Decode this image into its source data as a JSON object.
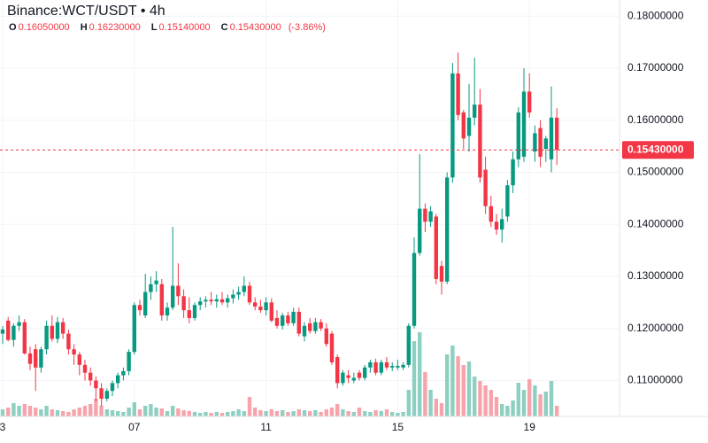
{
  "chart_data": {
    "type": "candlestick",
    "title": "Binance:WCT/USDT • 4h",
    "ohlc_legend": [
      {
        "key": "O",
        "value": {
          "value": 0.1605,
          "label": "0.16050000"
        }
      },
      {
        "key": "H",
        "value": {
          "value": 0.1623,
          "label": "0.16230000"
        }
      },
      {
        "key": "L",
        "value": {
          "value": 0.1514,
          "label": "0.15140000"
        }
      },
      {
        "key": "C",
        "value": {
          "value": 0.1543,
          "label": "0.15430000"
        }
      }
    ],
    "change": {
      "value": -3.86,
      "label": "(-3.86%)"
    },
    "categories": [
      "3",
      null,
      null,
      null,
      null,
      null,
      null,
      null,
      null,
      null,
      null,
      null,
      null,
      null,
      null,
      null,
      null,
      null,
      null,
      null,
      null,
      null,
      null,
      null,
      "07",
      null,
      null,
      null,
      null,
      null,
      null,
      null,
      null,
      null,
      null,
      null,
      null,
      null,
      null,
      null,
      null,
      null,
      null,
      null,
      null,
      null,
      null,
      null,
      "11",
      null,
      null,
      null,
      null,
      null,
      null,
      null,
      null,
      null,
      null,
      null,
      null,
      null,
      null,
      null,
      null,
      null,
      null,
      null,
      null,
      null,
      null,
      null,
      "15",
      null,
      null,
      null,
      null,
      null,
      null,
      null,
      null,
      null,
      null,
      null,
      null,
      null,
      null,
      null,
      null,
      null,
      null,
      null,
      null,
      null,
      null,
      null,
      "19",
      null,
      null,
      null,
      null,
      null
    ],
    "open": [
      0.119,
      0.1215,
      0.1178,
      0.1205,
      0.1212,
      0.1152,
      0.116,
      0.1125,
      0.116,
      0.1205,
      0.118,
      0.1212,
      0.119,
      0.116,
      0.115,
      0.113,
      0.1115,
      0.11,
      0.1085,
      0.1065,
      0.108,
      0.1095,
      0.111,
      0.1118,
      0.1155,
      0.1245,
      0.1225,
      0.127,
      0.1285,
      0.1285,
      0.1225,
      0.124,
      0.1282,
      0.1262,
      0.1235,
      0.122,
      0.1245,
      0.1252,
      0.1255,
      0.1252,
      0.1256,
      0.125,
      0.1258,
      0.1265,
      0.127,
      0.1282,
      0.125,
      0.1242,
      0.1235,
      0.125,
      0.122,
      0.1205,
      0.1225,
      0.121,
      0.1232,
      0.1185,
      0.121,
      0.1195,
      0.1212,
      0.12,
      0.119,
      0.1145,
      0.1095,
      0.111,
      0.11,
      0.1115,
      0.1105,
      0.1125,
      0.1135,
      0.1115,
      0.1135,
      0.1125,
      0.1125,
      0.1125,
      0.113,
      0.1205,
      0.1345,
      0.143,
      0.1405,
      0.1415,
      0.132,
      0.129,
      0.149,
      0.169,
      0.1615,
      0.157,
      0.1605,
      0.163,
      0.1505,
      0.1435,
      0.1405,
      0.139,
      0.1415,
      0.1475,
      0.1525,
      0.153,
      0.1655,
      0.154,
      0.1585,
      0.1545,
      0.1525,
      0.1605
    ],
    "high": [
      0.1205,
      0.1222,
      0.121,
      0.1225,
      0.1218,
      0.1165,
      0.117,
      0.1165,
      0.1215,
      0.1225,
      0.1222,
      0.122,
      0.1198,
      0.117,
      0.1155,
      0.114,
      0.1125,
      0.1108,
      0.1095,
      0.1085,
      0.11,
      0.1115,
      0.1125,
      0.116,
      0.125,
      0.1255,
      0.1305,
      0.13,
      0.131,
      0.1295,
      0.125,
      0.1395,
      0.1325,
      0.1275,
      0.126,
      0.125,
      0.126,
      0.1262,
      0.127,
      0.1265,
      0.127,
      0.1265,
      0.1275,
      0.128,
      0.13,
      0.129,
      0.126,
      0.1255,
      0.126,
      0.1258,
      0.1235,
      0.123,
      0.1232,
      0.124,
      0.124,
      0.1212,
      0.122,
      0.122,
      0.1218,
      0.121,
      0.1195,
      0.115,
      0.112,
      0.112,
      0.1115,
      0.112,
      0.113,
      0.114,
      0.1142,
      0.114,
      0.1145,
      0.1135,
      0.114,
      0.1135,
      0.121,
      0.1375,
      0.1535,
      0.144,
      0.1435,
      0.142,
      0.133,
      0.15,
      0.171,
      0.173,
      0.162,
      0.167,
      0.172,
      0.166,
      0.153,
      0.1455,
      0.142,
      0.143,
      0.1485,
      0.154,
      0.1625,
      0.17,
      0.169,
      0.159,
      0.16,
      0.157,
      0.1665,
      0.1623
    ],
    "low": [
      0.117,
      0.1175,
      0.1165,
      0.1195,
      0.115,
      0.112,
      0.108,
      0.1115,
      0.115,
      0.1175,
      0.1172,
      0.118,
      0.115,
      0.113,
      0.111,
      0.11,
      0.109,
      0.106,
      0.105,
      0.106,
      0.107,
      0.1085,
      0.11,
      0.111,
      0.115,
      0.1225,
      0.122,
      0.1255,
      0.127,
      0.1215,
      0.1215,
      0.1235,
      0.1245,
      0.122,
      0.121,
      0.1215,
      0.1235,
      0.124,
      0.1245,
      0.124,
      0.1245,
      0.124,
      0.1248,
      0.1255,
      0.1262,
      0.1245,
      0.1235,
      0.123,
      0.1225,
      0.1212,
      0.12,
      0.1198,
      0.1205,
      0.1205,
      0.1185,
      0.1175,
      0.119,
      0.119,
      0.1195,
      0.1165,
      0.113,
      0.1085,
      0.109,
      0.1095,
      0.1095,
      0.11,
      0.11,
      0.1115,
      0.111,
      0.111,
      0.112,
      0.1118,
      0.112,
      0.112,
      0.1125,
      0.12,
      0.134,
      0.1385,
      0.1395,
      0.1285,
      0.1265,
      0.1285,
      0.148,
      0.16,
      0.1545,
      0.154,
      0.159,
      0.148,
      0.142,
      0.1395,
      0.138,
      0.1365,
      0.1405,
      0.146,
      0.151,
      0.152,
      0.1605,
      0.152,
      0.151,
      0.152,
      0.15,
      0.1514
    ],
    "close": [
      0.1198,
      0.1178,
      0.1205,
      0.1212,
      0.1152,
      0.1132,
      0.1125,
      0.116,
      0.1205,
      0.118,
      0.1212,
      0.119,
      0.116,
      0.115,
      0.113,
      0.1115,
      0.11,
      0.1085,
      0.1065,
      0.108,
      0.1095,
      0.111,
      0.1118,
      0.1155,
      0.1245,
      0.1235,
      0.127,
      0.1285,
      0.1292,
      0.1225,
      0.124,
      0.1282,
      0.1262,
      0.1235,
      0.122,
      0.1245,
      0.1252,
      0.1255,
      0.1252,
      0.1256,
      0.125,
      0.1258,
      0.1265,
      0.127,
      0.1282,
      0.125,
      0.1242,
      0.1235,
      0.125,
      0.1215,
      0.1205,
      0.1225,
      0.121,
      0.1232,
      0.119,
      0.1205,
      0.1195,
      0.1212,
      0.12,
      0.117,
      0.1135,
      0.1095,
      0.1115,
      0.1105,
      0.1105,
      0.1105,
      0.1125,
      0.1135,
      0.1115,
      0.1135,
      0.1125,
      0.1128,
      0.1128,
      0.113,
      0.1205,
      0.1345,
      0.143,
      0.1405,
      0.1425,
      0.1295,
      0.129,
      0.149,
      0.169,
      0.161,
      0.1565,
      0.1605,
      0.163,
      0.149,
      0.1435,
      0.1405,
      0.139,
      0.141,
      0.1475,
      0.1525,
      0.1615,
      0.1655,
      0.1615,
      0.1575,
      0.153,
      0.1565,
      0.1605,
      0.1543
    ],
    "volume": [
      8,
      10,
      15,
      12,
      14,
      12,
      10,
      8,
      12,
      8,
      7,
      6,
      5,
      8,
      10,
      12,
      14,
      20,
      12,
      8,
      7,
      6,
      5,
      10,
      16,
      8,
      12,
      14,
      10,
      9,
      6,
      12,
      9,
      7,
      6,
      5,
      4,
      5,
      4,
      5,
      4,
      5,
      6,
      8,
      6,
      22,
      10,
      7,
      6,
      8,
      6,
      7,
      5,
      6,
      8,
      7,
      6,
      7,
      5,
      8,
      10,
      14,
      8,
      6,
      5,
      10,
      6,
      5,
      7,
      6,
      8,
      5,
      4,
      5,
      30,
      85,
      95,
      50,
      30,
      20,
      15,
      70,
      80,
      68,
      58,
      62,
      45,
      40,
      35,
      30,
      22,
      14,
      12,
      18,
      38,
      30,
      42,
      35,
      25,
      28,
      40,
      12
    ],
    "up_color": "#089981",
    "down_color": "#f23645",
    "up_volume_color": "#8dcfc1",
    "down_volume_color": "#f7a3ab",
    "ylim": [
      0.1031,
      0.1831
    ],
    "yticks": [
      {
        "value": 0.11,
        "label": "0.11000000"
      },
      {
        "value": 0.12,
        "label": "0.12000000"
      },
      {
        "value": 0.13,
        "label": "0.13000000"
      },
      {
        "value": 0.14,
        "label": "0.14000000"
      },
      {
        "value": 0.15,
        "label": "0.15000000"
      },
      {
        "value": 0.16,
        "label": "0.16000000"
      },
      {
        "value": 0.17,
        "label": "0.17000000"
      },
      {
        "value": 0.18,
        "label": "0.18000000"
      }
    ],
    "last_price": {
      "value": 0.1543,
      "label": "0.15430000"
    },
    "grid": true
  }
}
